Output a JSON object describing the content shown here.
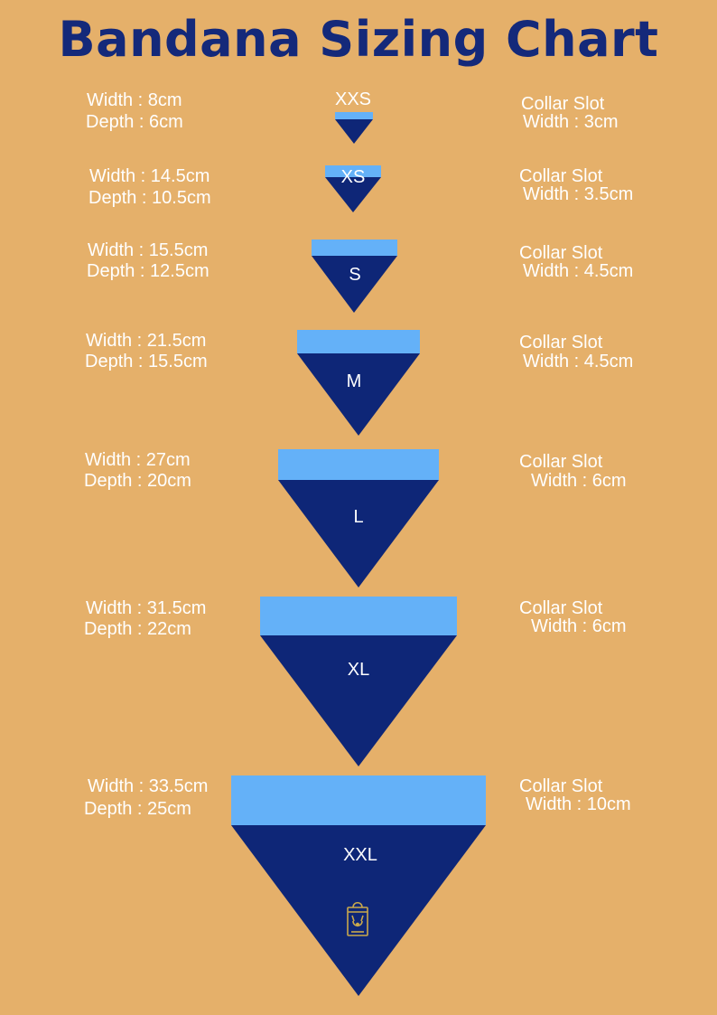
{
  "title": "Bandana Sizing Chart",
  "colors": {
    "background": "#E5B06A",
    "title": "#14297A",
    "collar": "#64B1F8",
    "body": "#0E2677",
    "text": "#FFFFFF",
    "logo": "#C9A84C"
  },
  "sizes": [
    {
      "label": "XXS",
      "width": "Width : 8cm",
      "depth": "Depth : 6cm",
      "collar_title": "Collar Slot",
      "collar_width": "Width : 3cm"
    },
    {
      "label": "XS",
      "width": "Width : 14.5cm",
      "depth": "Depth : 10.5cm",
      "collar_title": "Collar Slot",
      "collar_width": "Width : 3.5cm"
    },
    {
      "label": "S",
      "width": "Width : 15.5cm",
      "depth": "Depth : 12.5cm",
      "collar_title": "Collar Slot",
      "collar_width": "Width : 4.5cm"
    },
    {
      "label": "M",
      "width": "Width : 21.5cm",
      "depth": "Depth : 15.5cm",
      "collar_title": "Collar Slot",
      "collar_width": "Width : 4.5cm"
    },
    {
      "label": "L",
      "width": "Width : 27cm",
      "depth": "Depth : 20cm",
      "collar_title": "Collar Slot",
      "collar_width": "Width : 6cm"
    },
    {
      "label": "XL",
      "width": "Width : 31.5cm",
      "depth": "Depth : 22cm",
      "collar_title": "Collar Slot",
      "collar_width": "Width : 6cm"
    },
    {
      "label": "XXL",
      "width": "Width : 33.5cm",
      "depth": "Depth : 25cm",
      "collar_title": "Collar Slot",
      "collar_width": "Width : 10cm"
    }
  ],
  "logo_icon": "shopping-bag-icon"
}
